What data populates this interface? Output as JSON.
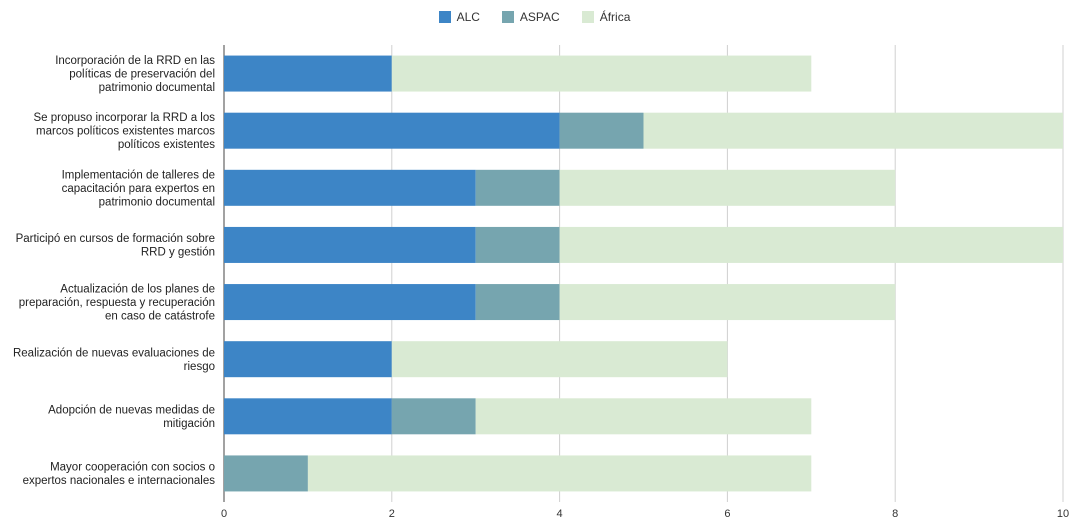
{
  "chart_data": {
    "type": "bar",
    "orientation": "horizontal",
    "stacked": true,
    "categories": [
      [
        "Incorporación de la RRD en las",
        "políticas de preservación del",
        "patrimonio documental"
      ],
      [
        "Se propuso incorporar la RRD a los",
        "marcos políticos existentes marcos",
        "políticos existentes"
      ],
      [
        "Implementación de talleres de",
        "capacitación para expertos en",
        "patrimonio documental"
      ],
      [
        "Participó en cursos de formación sobre",
        "RRD y gestión"
      ],
      [
        "Actualización de los planes de",
        "preparación, respuesta y recuperación",
        "en caso de catástrofe"
      ],
      [
        "Realización de nuevas evaluaciones de",
        "riesgo"
      ],
      [
        "Adopción de nuevas medidas de",
        "mitigación"
      ],
      [
        "Mayor cooperación con socios o",
        "expertos nacionales e internacionales"
      ]
    ],
    "series": [
      {
        "name": "ALC",
        "color": "#3d85c6",
        "values": [
          2,
          4,
          3,
          3,
          3,
          2,
          2,
          0
        ]
      },
      {
        "name": "ASPAC",
        "color": "#76a5af",
        "values": [
          0,
          1,
          1,
          1,
          1,
          0,
          1,
          1
        ]
      },
      {
        "name": "África",
        "color": "#d9ead3",
        "values": [
          5,
          5,
          4,
          6,
          4,
          4,
          4,
          6
        ]
      }
    ],
    "xlim": [
      0,
      10
    ],
    "xticks": [
      "0",
      "2",
      "4",
      "6",
      "8",
      "10"
    ],
    "grid": true,
    "legend_position": "top-center"
  }
}
